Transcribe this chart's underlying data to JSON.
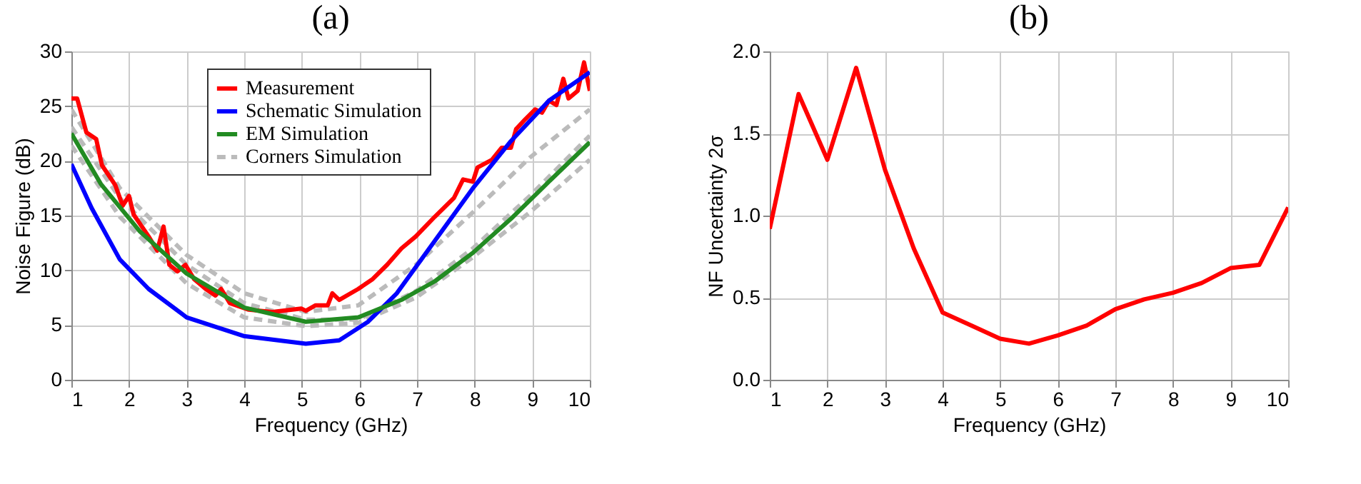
{
  "chart_data": [
    {
      "type": "line",
      "title": "(a)",
      "xlabel": "Frequency (GHz)",
      "ylabel": "Noise Figure (dB)",
      "xlim": [
        1,
        10
      ],
      "xticks": [
        1,
        2,
        3,
        4,
        5,
        6,
        7,
        8,
        9,
        10
      ],
      "ylim": [
        0,
        30
      ],
      "yticks": [
        0,
        5,
        10,
        15,
        20,
        25,
        30
      ],
      "grid": true,
      "legend": "top",
      "series": [
        {
          "name": "Measurement",
          "color": "#ff0000",
          "line_style": "solid",
          "x": [
            1.0,
            1.1,
            1.26,
            1.43,
            1.53,
            1.76,
            1.89,
            2.0,
            2.08,
            2.34,
            2.49,
            2.6,
            2.7,
            2.84,
            2.98,
            3.13,
            3.33,
            3.5,
            3.6,
            3.75,
            4.08,
            4.49,
            4.99,
            5.07,
            5.24,
            5.45,
            5.53,
            5.65,
            5.98,
            6.23,
            6.48,
            6.73,
            6.98,
            7.31,
            7.64,
            7.8,
            7.97,
            8.05,
            8.3,
            8.47,
            8.63,
            8.72,
            8.88,
            9.05,
            9.17,
            9.29,
            9.42,
            9.54,
            9.63,
            9.79,
            9.9,
            10.0
          ],
          "values": [
            25.7,
            25.7,
            22.6,
            22.0,
            19.6,
            17.8,
            15.9,
            16.8,
            15.1,
            13.1,
            11.8,
            14.0,
            10.5,
            9.9,
            10.5,
            9.2,
            8.3,
            7.7,
            8.3,
            7.0,
            6.4,
            6.2,
            6.5,
            6.3,
            6.8,
            6.8,
            7.9,
            7.3,
            8.3,
            9.2,
            10.5,
            12.0,
            13.1,
            14.9,
            16.6,
            18.3,
            18.1,
            19.4,
            20.1,
            21.2,
            21.2,
            22.9,
            23.8,
            24.7,
            24.4,
            25.5,
            25.1,
            27.5,
            25.7,
            26.4,
            29.0,
            26.4
          ]
        },
        {
          "name": "Schematic Simulation",
          "color": "#0000ff",
          "line_style": "solid",
          "x": [
            1.0,
            1.35,
            1.84,
            2.34,
            3.0,
            3.99,
            5.07,
            5.65,
            6.15,
            6.65,
            7.31,
            7.97,
            8.63,
            9.29,
            10.0
          ],
          "values": [
            19.7,
            15.7,
            11.0,
            8.3,
            5.7,
            4.0,
            3.3,
            3.6,
            5.3,
            7.9,
            12.7,
            17.5,
            21.8,
            25.5,
            28.1
          ]
        },
        {
          "name": "EM Simulation",
          "color": "#228b22",
          "line_style": "solid",
          "x": [
            1.0,
            1.51,
            2.18,
            3.0,
            4.0,
            5.07,
            5.98,
            6.73,
            7.31,
            7.97,
            8.63,
            9.29,
            10.0
          ],
          "values": [
            22.5,
            17.9,
            13.6,
            9.7,
            6.6,
            5.3,
            5.7,
            7.3,
            9.0,
            11.6,
            14.7,
            18.1,
            21.7
          ]
        },
        {
          "name": "Corners Simulation",
          "color": "#bbbbbb",
          "line_style": "dashed",
          "x": [
            1.0,
            1.84,
            3.0,
            4.0,
            5.07,
            5.98,
            6.98,
            7.97,
            8.96,
            10.0
          ],
          "values": [
            24.7,
            17.5,
            11.4,
            7.9,
            6.2,
            6.8,
            10.5,
            15.3,
            20.3,
            24.7
          ]
        },
        {
          "color": "#bbbbbb",
          "line_style": "dashed",
          "x": [
            1.0,
            1.84,
            3.0,
            4.0,
            5.07,
            5.98,
            6.98,
            7.97,
            8.96,
            10.0
          ],
          "values": [
            23.1,
            16.6,
            10.5,
            7.0,
            5.5,
            5.5,
            8.1,
            12.0,
            16.8,
            22.3
          ]
        },
        {
          "color": "#bbbbbb",
          "line_style": "dashed",
          "x": [
            1.0,
            1.84,
            3.0,
            4.0,
            5.07,
            5.98,
            6.98,
            7.97,
            8.96,
            10.0
          ],
          "values": [
            21.4,
            14.9,
            8.8,
            5.7,
            4.9,
            5.2,
            7.5,
            11.2,
            15.3,
            20.1
          ]
        }
      ]
    },
    {
      "type": "line",
      "title": "(b)",
      "xlabel": "Frequency (GHz)",
      "ylabel": "NF Uncertainty 2σ",
      "xlim": [
        1,
        10
      ],
      "xticks": [
        1,
        2,
        3,
        4,
        5,
        6,
        7,
        8,
        9,
        10
      ],
      "ylim": [
        0,
        2
      ],
      "yticks": [
        {
          "value": 0,
          "label": "0.0"
        },
        0.5,
        {
          "value": 1,
          "label": "1.0"
        },
        1.5,
        {
          "value": 2,
          "label": "2.0"
        }
      ],
      "grid": true,
      "series": [
        {
          "color": "#ff0000",
          "line_style": "solid",
          "x": [
            1,
            1.5,
            2,
            2.5,
            3,
            3.5,
            4,
            4.5,
            5,
            5.5,
            6,
            6.5,
            7,
            7.5,
            8,
            8.5,
            9,
            9.5,
            10
          ],
          "values": [
            0.92,
            1.74,
            1.34,
            1.9,
            1.28,
            0.8,
            0.41,
            0.33,
            0.25,
            0.22,
            0.27,
            0.33,
            0.43,
            0.49,
            0.53,
            0.59,
            0.68,
            0.7,
            1.05
          ]
        }
      ]
    }
  ]
}
